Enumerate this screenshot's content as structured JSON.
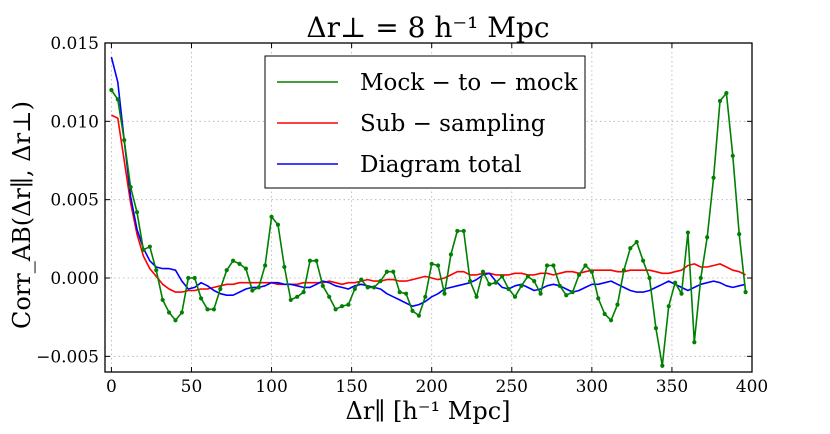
{
  "chart_data": {
    "type": "line",
    "title": "Δr⊥ = 8 h⁻¹ Mpc",
    "xlabel": "Δr∥ [h⁻¹ Mpc]",
    "ylabel": "Corr_AB(Δr∥, Δr⊥)",
    "xlim": [
      -4,
      400
    ],
    "ylim": [
      -0.006,
      0.015
    ],
    "grid": true,
    "legend_position": "top-center",
    "xticks": [
      0,
      50,
      100,
      150,
      200,
      250,
      300,
      350,
      400
    ],
    "xtick_labels": [
      "0",
      "50",
      "100",
      "150",
      "200",
      "250",
      "300",
      "350",
      "400"
    ],
    "yticks": [
      -0.005,
      0.0,
      0.005,
      0.01,
      0.015
    ],
    "ytick_labels": [
      "−0.005",
      "0.000",
      "0.005",
      "0.010",
      "0.015"
    ],
    "x": [
      0,
      4,
      8,
      12,
      16,
      20,
      24,
      28,
      32,
      36,
      40,
      44,
      48,
      52,
      56,
      60,
      64,
      68,
      72,
      76,
      80,
      84,
      88,
      92,
      96,
      100,
      104,
      108,
      112,
      116,
      120,
      124,
      128,
      132,
      136,
      140,
      144,
      148,
      152,
      156,
      160,
      164,
      168,
      172,
      176,
      180,
      184,
      188,
      192,
      196,
      200,
      204,
      208,
      212,
      216,
      220,
      224,
      228,
      232,
      236,
      240,
      244,
      248,
      252,
      256,
      260,
      264,
      268,
      272,
      276,
      280,
      284,
      288,
      292,
      296,
      300,
      304,
      308,
      312,
      316,
      320,
      324,
      328,
      332,
      336,
      340,
      344,
      348,
      352,
      356,
      360,
      364,
      368,
      372,
      376,
      380,
      384,
      388,
      392,
      396
    ],
    "series": [
      {
        "name": "Mock − to − mock",
        "color": "#008000",
        "markers": true,
        "values": [
          0.012,
          0.0114,
          0.0088,
          0.0058,
          0.0042,
          0.0018,
          0.002,
          0.0005,
          -0.0014,
          -0.0022,
          -0.0027,
          -0.0022,
          0.0,
          0.0,
          -0.0013,
          -0.002,
          -0.002,
          -0.0007,
          0.0005,
          0.0011,
          0.0009,
          0.0006,
          -0.0008,
          -0.0006,
          0.0008,
          0.0039,
          0.0034,
          0.0007,
          -0.0014,
          -0.0012,
          -0.0009,
          0.0011,
          0.0011,
          -0.0005,
          -0.0012,
          -0.002,
          -0.0018,
          -0.0017,
          -0.0007,
          -0.0001,
          -0.0006,
          -0.0006,
          -0.0002,
          0.0004,
          0.0004,
          -0.0009,
          -0.001,
          -0.0021,
          -0.0024,
          -0.0012,
          0.0009,
          0.0008,
          -0.001,
          0.0015,
          0.003,
          0.003,
          -0.0002,
          -0.0012,
          0.0004,
          -0.0004,
          -0.0003,
          0.0001,
          -0.0007,
          -0.0012,
          -0.0005,
          0.0001,
          -0.0002,
          -0.001,
          0.0008,
          0.0008,
          -0.0005,
          -0.0011,
          -0.0009,
          0.0002,
          0.0008,
          0.0004,
          -0.0013,
          -0.0023,
          -0.0027,
          -0.0017,
          0.0005,
          0.0019,
          0.0023,
          0.0011,
          0.0,
          -0.0032,
          -0.0056,
          -0.0018,
          -0.0003,
          -0.001,
          0.0029,
          -0.0041,
          0.0,
          0.0026,
          0.0064,
          0.0113,
          0.0118,
          0.0078,
          0.0028,
          -0.0009
        ]
      },
      {
        "name": "Sub − sampling",
        "color": "#ff0000",
        "markers": false,
        "values": [
          0.0104,
          0.0102,
          0.0075,
          0.0048,
          0.0028,
          0.0014,
          0.0006,
          0.0001,
          -0.0004,
          -0.0007,
          -0.0009,
          -0.0009,
          -0.0008,
          -0.0008,
          -0.0007,
          -0.0007,
          -0.0006,
          -0.0005,
          -0.0004,
          -0.0004,
          -0.0003,
          -0.0003,
          -0.0003,
          -0.0003,
          -0.0003,
          -0.0003,
          -0.0004,
          -0.0004,
          -0.0004,
          -0.0004,
          -0.0003,
          -0.0003,
          -0.0003,
          -0.0003,
          -0.0002,
          -0.0003,
          -0.0004,
          -0.0003,
          -0.0003,
          -0.0002,
          -0.0001,
          -0.0002,
          -0.0002,
          -0.0001,
          -0.0001,
          -0.0002,
          -0.0002,
          -0.0001,
          0.0,
          0.0001,
          0.0,
          -0.0001,
          0.0,
          0.0002,
          0.0004,
          0.0004,
          0.0002,
          0.0002,
          0.0003,
          0.0003,
          0.0002,
          0.0002,
          0.0002,
          0.0003,
          0.0003,
          0.0002,
          0.0002,
          0.0003,
          0.0003,
          0.0002,
          0.0003,
          0.0004,
          0.0004,
          0.0003,
          0.0004,
          0.0005,
          0.0005,
          0.0005,
          0.0005,
          0.0004,
          0.0004,
          0.0005,
          0.0005,
          0.0005,
          0.0005,
          0.0004,
          0.0003,
          0.0003,
          0.0004,
          0.0005,
          0.0008,
          0.0009,
          0.0007,
          0.0007,
          0.0008,
          0.0009,
          0.0007,
          0.0005,
          0.0004,
          0.0002
        ]
      },
      {
        "name": "Diagram total",
        "color": "#0000ff",
        "markers": false,
        "values": [
          0.0141,
          0.0125,
          0.0088,
          0.0052,
          0.0031,
          0.0019,
          0.0011,
          0.0007,
          0.0006,
          0.0006,
          0.0005,
          -0.0002,
          -0.0007,
          -0.0006,
          -0.0003,
          -0.0005,
          -0.0008,
          -0.001,
          -0.0011,
          -0.0011,
          -0.0009,
          -0.0007,
          -0.0006,
          -0.0006,
          -0.0005,
          -0.0003,
          -0.0003,
          -0.0004,
          -0.0004,
          -0.0005,
          -0.0006,
          -0.0006,
          -0.0004,
          -0.0002,
          -0.0003,
          -0.0005,
          -0.0006,
          -0.0007,
          -0.0005,
          -0.0004,
          -0.0005,
          -0.0006,
          -0.0007,
          -0.001,
          -0.0012,
          -0.0014,
          -0.0016,
          -0.0018,
          -0.0017,
          -0.0015,
          -0.0012,
          -0.001,
          -0.0007,
          -0.0006,
          -0.0005,
          -0.0004,
          -0.0003,
          -0.0001,
          0.0002,
          0.0003,
          -0.0002,
          -0.0006,
          -0.0007,
          -0.0005,
          -0.0004,
          -0.0006,
          -0.0008,
          -0.0007,
          -0.0005,
          -0.0004,
          -0.0005,
          -0.0007,
          -0.0009,
          -0.0008,
          -0.0006,
          -0.0004,
          -0.0004,
          -0.0003,
          -0.0002,
          -0.0004,
          -0.0006,
          -0.0008,
          -0.0009,
          -0.0009,
          -0.0008,
          -0.0006,
          -0.0004,
          -0.0002,
          -0.0004,
          -0.0006,
          -0.0008,
          -0.0006,
          -0.0004,
          -0.0003,
          -0.0002,
          -0.0003,
          -0.0005,
          -0.0006,
          -0.0005,
          -0.0004
        ]
      }
    ]
  }
}
